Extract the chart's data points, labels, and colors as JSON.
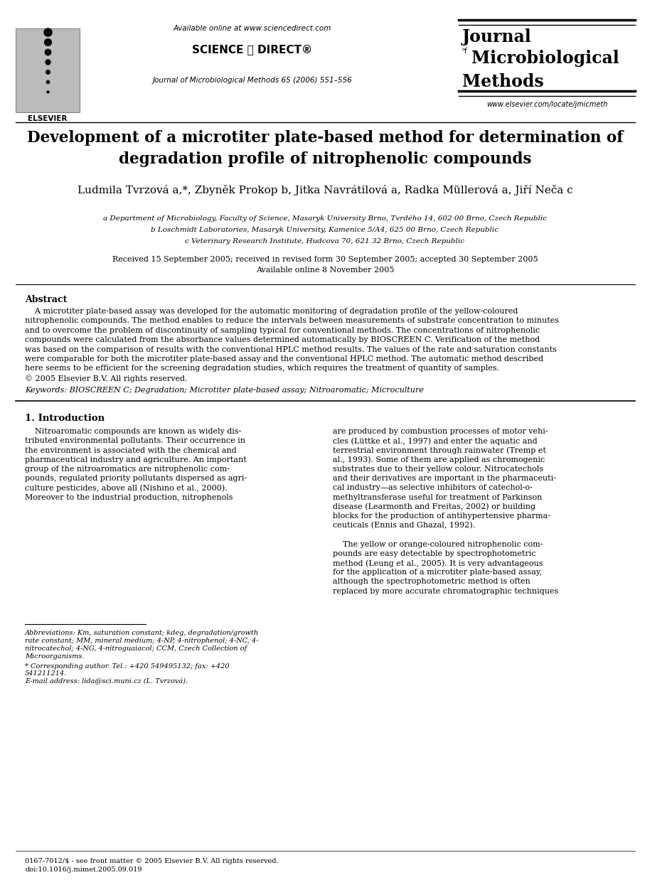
{
  "bg_color": "#ffffff",
  "header": {
    "available_online": "Available online at www.sciencedirect.com",
    "sciencedirect_text": "SCIENCE ⓓ DIRECT®",
    "journal_line": "Journal of Microbiological Methods 65 (2006) 551–556",
    "journal_name_line1": "Journal",
    "journal_name_line2": "Microbiological",
    "journal_name_line3": "Methods",
    "website": "www.elsevier.com/locate/jmicmeth",
    "elsevier_text": "ELSEVIER"
  },
  "title_line1": "Development of a microtiter plate-based method for determination of",
  "title_line2": "degradation profile of nitrophenolic compounds",
  "authors": "Ludmila Tvrzová a,*, Zbyněk Prokop b, Jitka Navrátilová a, Radka Müllerová a, Jiří Neča c",
  "affiliations": [
    "a Department of Microbiology, Faculty of Science, Masaryk University Brno, Tvrdého 14, 602 00 Brno, Czech Republic",
    "b Loschmidt Laboratories, Masaryk University, Kamenice 5/A4, 625 00 Brno, Czech Republic",
    "c Veterinary Research Institute, Hudcova 70, 621 32 Brno, Czech Republic"
  ],
  "date_line1": "Received 15 September 2005; received in revised form 30 September 2005; accepted 30 September 2005",
  "date_line2": "Available online 8 November 2005",
  "abstract_title": "Abstract",
  "abstract_lines": [
    "    A microtiter plate-based assay was developed for the automatic monitoring of degradation profile of the yellow-coloured",
    "nitrophenolic compounds. The method enables to reduce the intervals between measurements of substrate concentration to minutes",
    "and to overcome the problem of discontinuity of sampling typical for conventional methods. The concentrations of nitrophenolic",
    "compounds were calculated from the absorbance values determined automatically by BIOSCREEN C. Verification of the method",
    "was based on the comparison of results with the conventional HPLC method results. The values of the rate and saturation constants",
    "were comparable for both the microtiter plate-based assay and the conventional HPLC method. The automatic method described",
    "here seems to be efficient for the screening degradation studies, which requires the treatment of quantity of samples.",
    "© 2005 Elsevier B.V. All rights reserved."
  ],
  "keywords": "Keywords: BIOSCREEN C; Degradation; Microtiter plate-based assay; Nitroaromatic; Microculture",
  "section1_title": "1. Introduction",
  "col1_lines": [
    "    Nitroaromatic compounds are known as widely dis-",
    "tributed environmental pollutants. Their occurrence in",
    "the environment is associated with the chemical and",
    "pharmaceutical industry and agriculture. An important",
    "group of the nitroaromatics are nitrophenolic com-",
    "pounds, regulated priority pollutants dispersed as agri-",
    "culture pesticides, above all (Nishino et al., 2000).",
    "Moreover to the industrial production, nitrophenols"
  ],
  "col2_lines": [
    "are produced by combustion processes of motor vehi-",
    "cles (Lüttke et al., 1997) and enter the aquatic and",
    "terrestrial environment through rainwater (Tremp et",
    "al., 1993). Some of them are applied as chromogenic",
    "substrates due to their yellow colour. Nitrocatechols",
    "and their derivatives are important in the pharmaceuti-",
    "cal industry—as selective inhibitors of catechol-o-",
    "methyltransferase useful for treatment of Parkinson",
    "disease (Learmonth and Freitas, 2002) or building",
    "blocks for the production of antihypertensive pharma-",
    "ceuticals (Ennis and Ghazal, 1992).",
    "",
    "    The yellow or orange-coloured nitrophenolic com-",
    "pounds are easy detectable by spectrophotometric",
    "method (Leung et al., 2005). It is very advantageous",
    "for the application of a microtiter plate-based assay,",
    "although the spectrophotometric method is often",
    "replaced by more accurate chromatographic techniques"
  ],
  "fn_lines": [
    "Abbreviations: Km, saturation constant; kdeg, degradation/growth",
    "rate constant; MM, mineral medium; 4-NP, 4-nitrophenol; 4-NC, 4-",
    "nitrocatechol; 4-NG, 4-nitroguaiacol; CCM, Czech Collection of",
    "Microorganisms."
  ],
  "fn_corresponding1": "* Corresponding author. Tel.: +420 549495132; fax: +420",
  "fn_corresponding2": "541211214.",
  "fn_email": "E-mail address: lida@sci.muni.cz (L. Tvrzová).",
  "footer_issn": "0167-7012/$ - see front matter © 2005 Elsevier B.V. All rights reserved.",
  "footer_doi": "doi:10.1016/j.mimet.2005.09.019"
}
